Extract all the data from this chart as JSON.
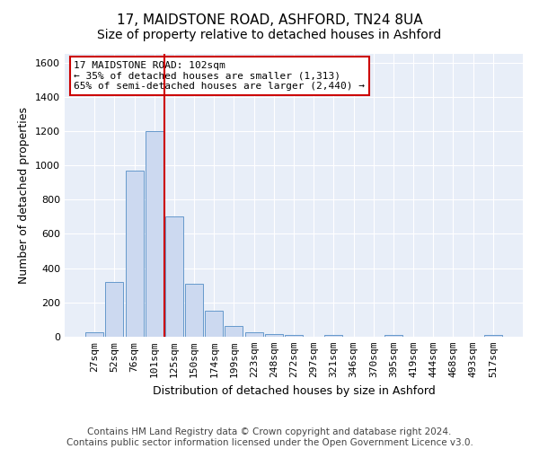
{
  "title": "17, MAIDSTONE ROAD, ASHFORD, TN24 8UA",
  "subtitle": "Size of property relative to detached houses in Ashford",
  "xlabel": "Distribution of detached houses by size in Ashford",
  "ylabel": "Number of detached properties",
  "categories": [
    "27sqm",
    "52sqm",
    "76sqm",
    "101sqm",
    "125sqm",
    "150sqm",
    "174sqm",
    "199sqm",
    "223sqm",
    "248sqm",
    "272sqm",
    "297sqm",
    "321sqm",
    "346sqm",
    "370sqm",
    "395sqm",
    "419sqm",
    "444sqm",
    "468sqm",
    "493sqm",
    "517sqm"
  ],
  "values": [
    25,
    320,
    970,
    1200,
    700,
    310,
    150,
    65,
    25,
    15,
    10,
    0,
    10,
    0,
    0,
    10,
    0,
    0,
    0,
    0,
    10
  ],
  "bar_color": "#ccd9f0",
  "bar_edge_color": "#6699cc",
  "vline_x_index": 3,
  "vline_color": "#cc0000",
  "annotation_text": "17 MAIDSTONE ROAD: 102sqm\n← 35% of detached houses are smaller (1,313)\n65% of semi-detached houses are larger (2,440) →",
  "annotation_box_color": "white",
  "annotation_box_edge": "#cc0000",
  "ylim": [
    0,
    1650
  ],
  "yticks": [
    0,
    200,
    400,
    600,
    800,
    1000,
    1200,
    1400,
    1600
  ],
  "footer": "Contains HM Land Registry data © Crown copyright and database right 2024.\nContains public sector information licensed under the Open Government Licence v3.0.",
  "plot_bg_color": "#e8eef8",
  "title_fontsize": 11,
  "xlabel_fontsize": 9,
  "ylabel_fontsize": 9,
  "tick_fontsize": 8,
  "footer_fontsize": 7.5,
  "annot_fontsize": 8
}
